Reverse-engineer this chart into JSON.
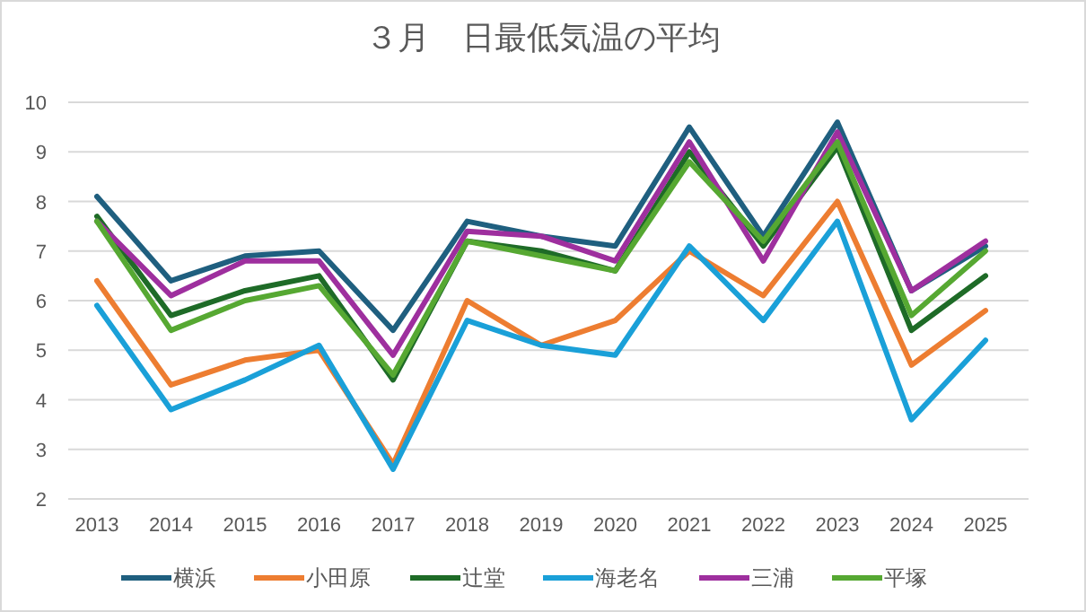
{
  "chart_data": {
    "type": "line",
    "title": "３月　日最低気温の平均",
    "categories": [
      "2013",
      "2014",
      "2015",
      "2016",
      "2017",
      "2018",
      "2019",
      "2020",
      "2021",
      "2022",
      "2023",
      "2024",
      "2025"
    ],
    "series": [
      {
        "name": "横浜",
        "color": "#1f5f7f",
        "values": [
          8.1,
          6.4,
          6.9,
          7.0,
          5.4,
          7.6,
          7.3,
          7.1,
          9.5,
          7.3,
          9.6,
          6.2,
          7.1
        ]
      },
      {
        "name": "小田原",
        "color": "#ed7d31",
        "values": [
          6.4,
          4.3,
          4.8,
          5.0,
          2.7,
          6.0,
          5.1,
          5.6,
          7.0,
          6.1,
          8.0,
          4.7,
          5.8
        ]
      },
      {
        "name": "辻堂",
        "color": "#1e6b27",
        "values": [
          7.7,
          5.7,
          6.2,
          6.5,
          4.4,
          7.2,
          7.0,
          6.6,
          9.0,
          7.1,
          9.1,
          5.4,
          6.5
        ]
      },
      {
        "name": "海老名",
        "color": "#1aa0d8",
        "values": [
          5.9,
          3.8,
          4.4,
          5.1,
          2.6,
          5.6,
          5.1,
          4.9,
          7.1,
          5.6,
          7.6,
          3.6,
          5.2
        ]
      },
      {
        "name": "三浦",
        "color": "#9e2f9e",
        "values": [
          7.6,
          6.1,
          6.8,
          6.8,
          4.9,
          7.4,
          7.3,
          6.8,
          9.2,
          6.8,
          9.4,
          6.2,
          7.2
        ]
      },
      {
        "name": "平塚",
        "color": "#56a832",
        "values": [
          7.6,
          5.4,
          6.0,
          6.3,
          4.5,
          7.2,
          6.9,
          6.6,
          8.8,
          7.2,
          9.2,
          5.7,
          7.0
        ]
      }
    ],
    "ylim": [
      2,
      10
    ],
    "yticks": [
      2,
      3,
      4,
      5,
      6,
      7,
      8,
      9,
      10
    ],
    "grid": "y",
    "legend": "bottom",
    "marker": "none",
    "line_style": "solid"
  }
}
